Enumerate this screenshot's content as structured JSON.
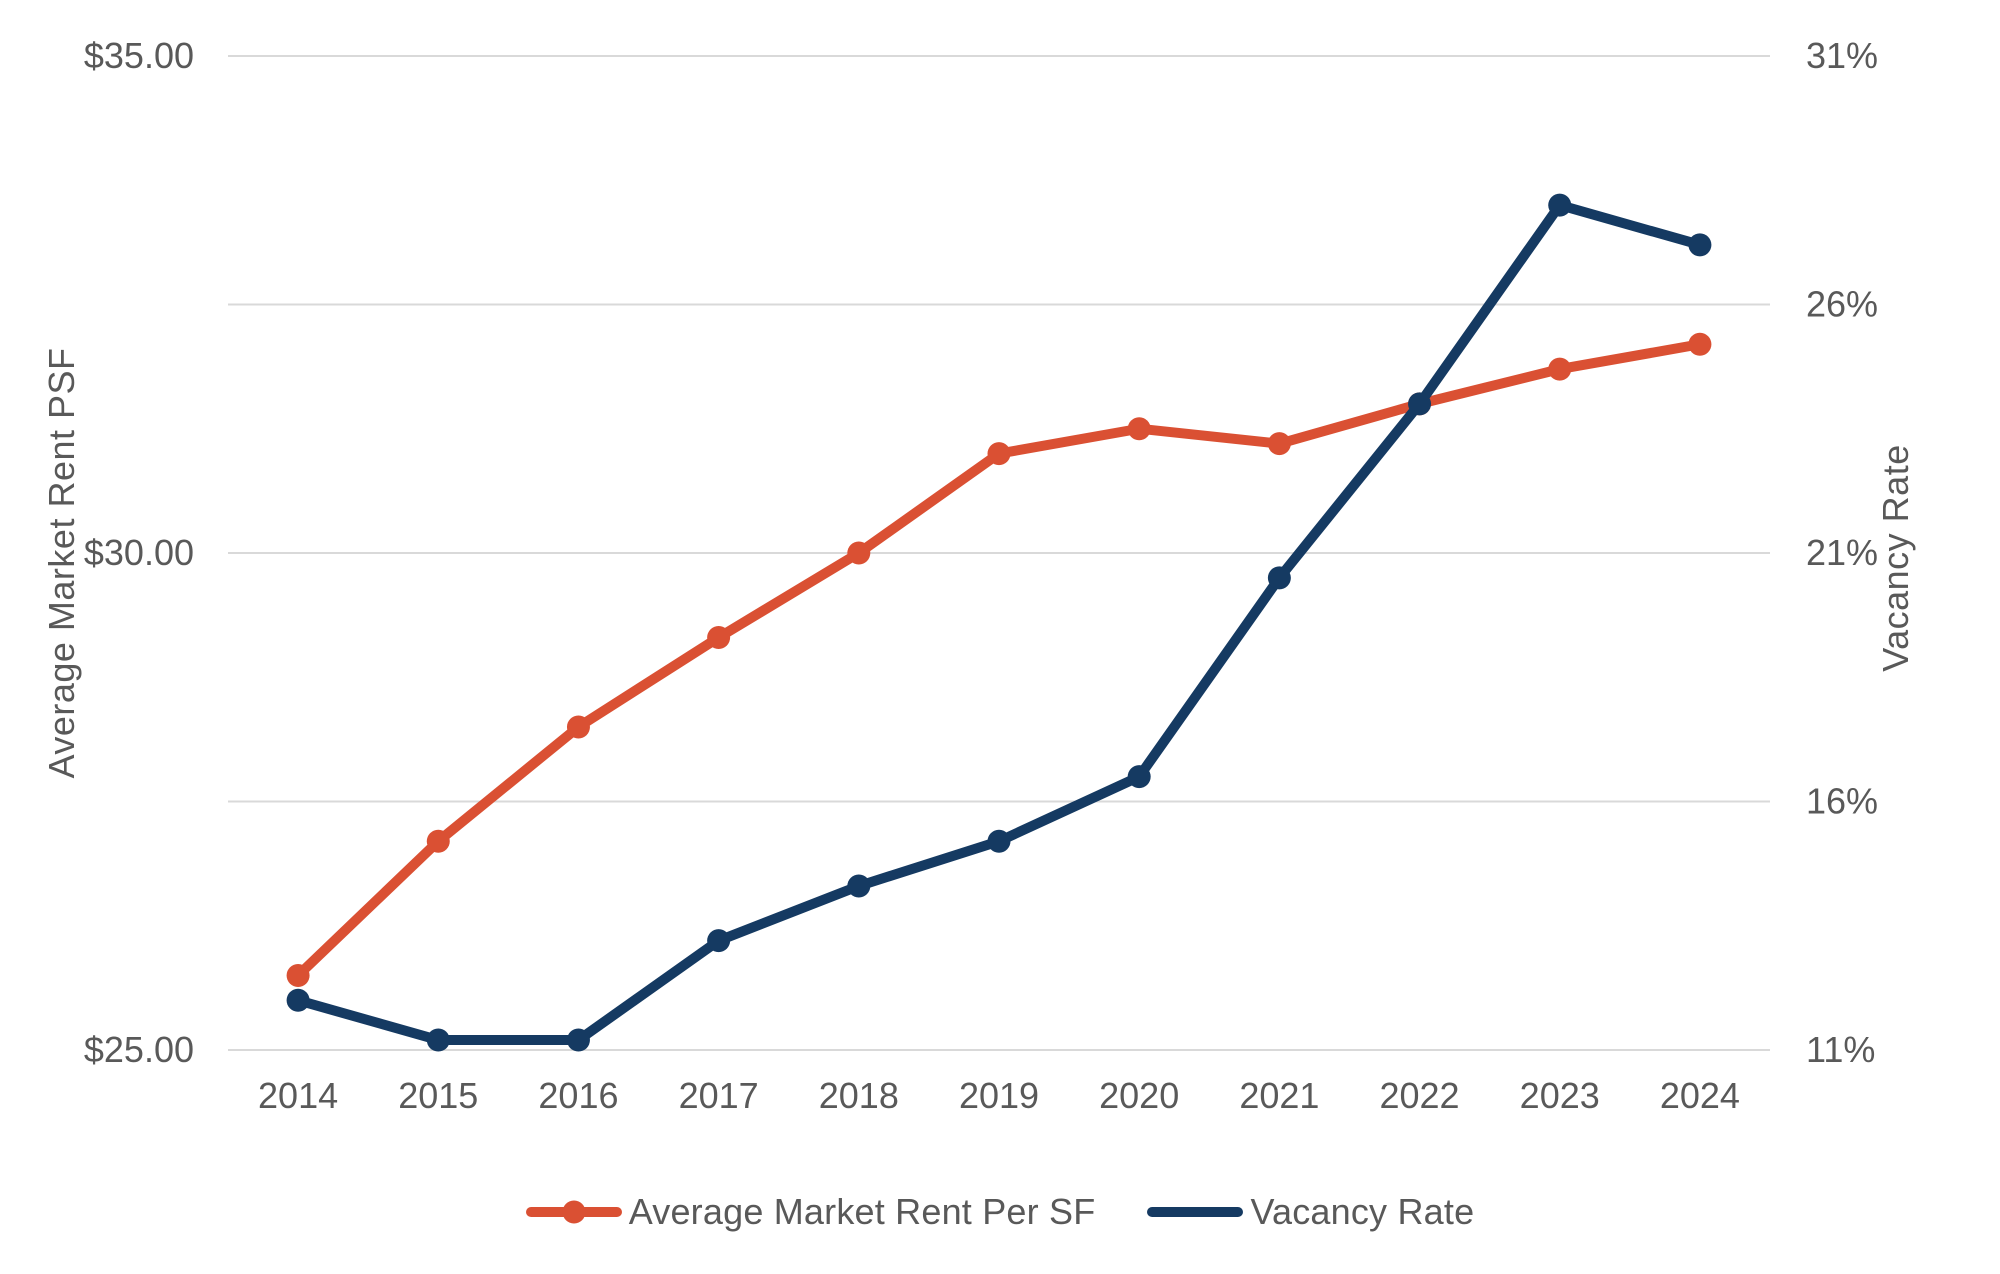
{
  "chart_data": {
    "type": "line",
    "title": "",
    "categories": [
      "2014",
      "2015",
      "2016",
      "2017",
      "2018",
      "2019",
      "2020",
      "2021",
      "2022",
      "2023",
      "2024"
    ],
    "series": [
      {
        "name": "Average Market Rent Per SF",
        "axis": "left",
        "color": "#DA5033",
        "marker": "circle",
        "values": [
          25.75,
          27.1,
          28.25,
          29.15,
          30.0,
          31.0,
          31.25,
          31.1,
          31.5,
          31.85,
          32.1
        ]
      },
      {
        "name": "Vacancy Rate",
        "axis": "right",
        "color": "#153A62",
        "marker": "circle",
        "values": [
          12.0,
          11.2,
          11.2,
          13.2,
          14.3,
          15.2,
          16.5,
          20.5,
          24.0,
          28.0,
          27.2
        ]
      }
    ],
    "left_axis": {
      "label": "Average Market Rent PSF",
      "min": 25,
      "max": 35,
      "ticks": [
        {
          "value": 35,
          "label": "$35.00"
        },
        {
          "value": 30,
          "label": "$30.00"
        },
        {
          "value": 25,
          "label": "$25.00"
        }
      ]
    },
    "right_axis": {
      "label": "Vacancy Rate",
      "min": 11,
      "max": 31,
      "ticks": [
        {
          "value": 31,
          "label": "31%"
        },
        {
          "value": 26,
          "label": "26%"
        },
        {
          "value": 21,
          "label": "21%"
        },
        {
          "value": 16,
          "label": "16%"
        },
        {
          "value": 11,
          "label": "11%"
        }
      ]
    },
    "grid": true,
    "legend_position": "bottom",
    "legend": [
      {
        "label": "Average Market Rent Per SF",
        "color": "#DA5033",
        "marker": "line-with-dot"
      },
      {
        "label": "Vacancy Rate",
        "color": "#153A62",
        "marker": "line"
      }
    ],
    "styles": {
      "grid_color": "#D9D9D9",
      "text_color": "#595959",
      "background": "#FFFFFF",
      "line_width": 10,
      "marker_radius": 11.5
    }
  }
}
